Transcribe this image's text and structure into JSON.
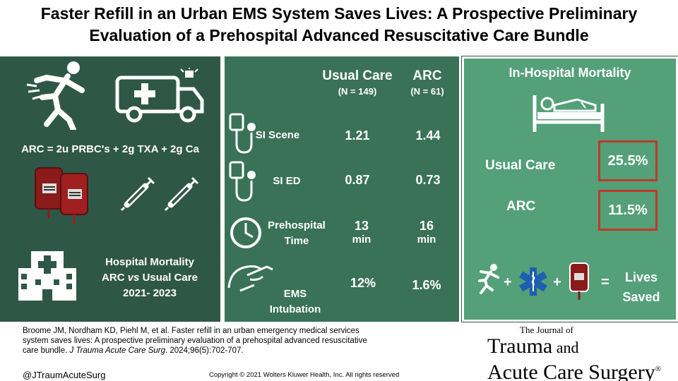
{
  "title": {
    "line1": "Faster Refill in an Urban EMS System Saves Lives: A Prospective Preliminary",
    "line2": "Evaluation of a Prehospital Advanced Resuscitative Care Bundle"
  },
  "left_panel": {
    "arc_equation": "ARC  =  2u PRBC's   +  2g TXA  +  2g Ca",
    "hospital_mortality": {
      "line1": "Hospital Mortality",
      "line2a": "ARC ",
      "line2b": "vs",
      "line2c": " Usual Care",
      "line3": "2021- 2023"
    },
    "icons": [
      "falling-person-icon",
      "ambulance-icon",
      "blood-bag-icon",
      "syringe-icon",
      "hospital-icon"
    ]
  },
  "middle_panel": {
    "columns": [
      {
        "label": "Usual Care",
        "n": "(N = 149)"
      },
      {
        "label": "ARC",
        "n": "(N = 61)"
      }
    ],
    "rows": [
      {
        "label_line1": "SI Scene",
        "label_line2": "",
        "usual_care": "1.21",
        "usual_care_unit": "",
        "arc": "1.44",
        "arc_unit": ""
      },
      {
        "label_line1": "SI ED",
        "label_line2": "",
        "usual_care": "0.87",
        "usual_care_unit": "",
        "arc": "0.73",
        "arc_unit": ""
      },
      {
        "label_line1": "Prehospital",
        "label_line2": "Time",
        "usual_care": "13",
        "usual_care_unit": "min",
        "arc": "16",
        "arc_unit": "min"
      },
      {
        "label_line1": "EMS",
        "label_line2": "Intubation",
        "usual_care": "12%",
        "usual_care_unit": "",
        "arc": "1.6%",
        "arc_unit": ""
      }
    ]
  },
  "right_panel": {
    "heading": "In-Hospital Mortality",
    "usual_care_label": "Usual Care",
    "usual_care_value": "25.5%",
    "arc_label": "ARC",
    "arc_value": "11.5%",
    "plus": "+",
    "equals": "=",
    "lives_line1": "Lives",
    "lives_line2": "Saved"
  },
  "citation": {
    "text": "Broome JM, Nordham KD, Piehl M, et al. Faster refill in an urban emergency medical services system saves lives: A prospective preliminary evaluation of a prehospital advanced resuscitative care bundle. ",
    "journal": "J Trauma Acute Care Surg",
    "ref": ". 2024;96(5):702-707."
  },
  "handle": "@JTraumAcuteSurg",
  "copyright": "Copyright © 2021  Wolters Kluwer Health, Inc. All rights reserved",
  "journal_logo": {
    "small": "The Journal of",
    "line1a": "Trauma",
    "line1b": " and",
    "line2": "Acute Care Surgery",
    "reg": "®"
  },
  "colors": {
    "left_panel": "#2f5747",
    "middle_panel": "#3a7257",
    "right_panel": "#53a079",
    "highlight_box": "#c0392b",
    "text_on_panel": "#ffffff"
  }
}
